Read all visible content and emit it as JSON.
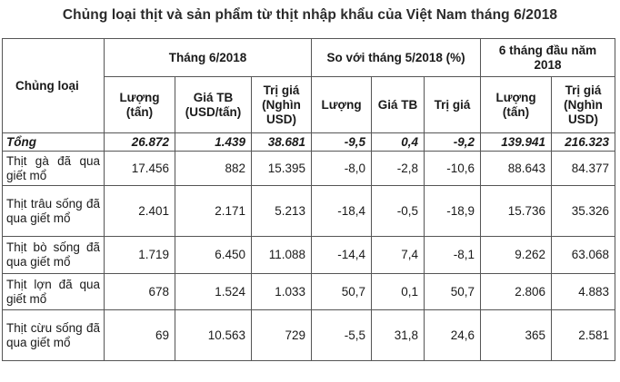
{
  "title": "Chủng loại thịt và sản phẩm từ thịt nhập khẩu của Việt Nam tháng 6/2018",
  "headers": {
    "category": "Chủng loại",
    "group_month": "Tháng 6/2018",
    "group_compare": "So với tháng 5/2018 (%)",
    "group_ytd": "6 tháng đầu năm 2018",
    "month_cols": [
      "Lượng (tấn)",
      "Giá TB (USD/tấn)",
      "Trị giá (Nghìn USD)"
    ],
    "compare_cols": [
      "Lượng",
      "Giá TB",
      "Trị giá"
    ],
    "ytd_cols": [
      "Lượng (tấn)",
      "Trị giá (Nghìn USD)"
    ]
  },
  "total": {
    "name": "Tổng",
    "values": [
      "26.872",
      "1.439",
      "38.681",
      "-9,5",
      "0,4",
      "-9,2",
      "139.941",
      "216.323"
    ]
  },
  "rows": [
    {
      "name": "Thịt gà đã qua giết mổ",
      "values": [
        "17.456",
        "882",
        "15.395",
        "-8,0",
        "-2,8",
        "-10,6",
        "88.643",
        "84.377"
      ]
    },
    {
      "name": "Thịt trâu sống đã qua giết mổ",
      "values": [
        "2.401",
        "2.171",
        "5.213",
        "-18,4",
        "-0,5",
        "-18,9",
        "15.736",
        "35.326"
      ]
    },
    {
      "name": "Thịt bò sống đã qua giết mổ",
      "values": [
        "1.719",
        "6.450",
        "11.088",
        "-14,4",
        "7,4",
        "-8,1",
        "9.262",
        "63.068"
      ]
    },
    {
      "name": "Thịt lợn đã qua giết mổ",
      "values": [
        "678",
        "1.524",
        "1.033",
        "50,7",
        "0,1",
        "50,7",
        "2.806",
        "4.883"
      ]
    },
    {
      "name": "Thịt cừu sống đã qua giết mổ",
      "values": [
        "69",
        "10.563",
        "729",
        "-5,5",
        "31,8",
        "24,6",
        "365",
        "2.581"
      ]
    }
  ]
}
